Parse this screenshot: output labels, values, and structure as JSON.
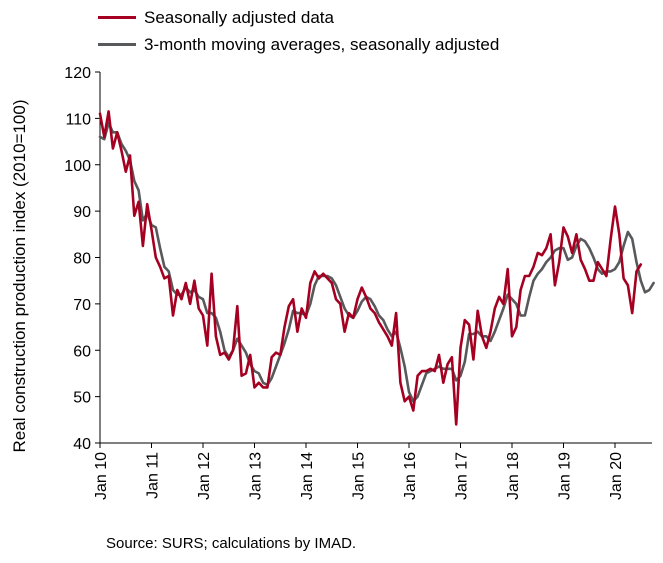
{
  "chart_data": {
    "type": "line",
    "title": "",
    "ylabel": "Real construction production index (2010=100)",
    "xlabel": "",
    "ylim": [
      40,
      120
    ],
    "yticks": [
      40,
      50,
      60,
      70,
      80,
      90,
      100,
      110,
      120
    ],
    "x_ticks": [
      "Jan 10",
      "Jan 11",
      "Jan 12",
      "Jan 13",
      "Jan 14",
      "Jan 15",
      "Jan 16",
      "Jan 17",
      "Jan 18",
      "Jan 19",
      "Jan 20"
    ],
    "x_start": "2010-01",
    "grid": false,
    "legend_position": "top-left",
    "series": [
      {
        "name": "Seasonally adjusted data",
        "color": "#a50021",
        "values": [
          111,
          106,
          111.5,
          103.5,
          107,
          103,
          98.5,
          102,
          89,
          92,
          82.5,
          91.5,
          86,
          80,
          78,
          75.5,
          76,
          67.5,
          73,
          71,
          74.5,
          70,
          75,
          69,
          67.5,
          61,
          76.5,
          63,
          59,
          59.5,
          58,
          60,
          69.5,
          54.5,
          55,
          59,
          52,
          53,
          52,
          52,
          58.5,
          59.5,
          59,
          65,
          69.5,
          71,
          64,
          69,
          67,
          74.5,
          77,
          75.5,
          76.5,
          75.5,
          74.5,
          71,
          70,
          64,
          68,
          67,
          71,
          73.5,
          71.5,
          69,
          68,
          66,
          64.5,
          63,
          61,
          68,
          53,
          49,
          50,
          47,
          54.5,
          55.5,
          55.5,
          56,
          55.5,
          59,
          53,
          57,
          58.5,
          44,
          60.5,
          66.5,
          65.5,
          58,
          68.5,
          63,
          60.5,
          64,
          69,
          71.5,
          70,
          77.5,
          63,
          65,
          73,
          76,
          76,
          78,
          81,
          80.5,
          82,
          85,
          74,
          79,
          86.5,
          84.5,
          81,
          85,
          79.5,
          77.5,
          75,
          75,
          79,
          77.5,
          76,
          84,
          91,
          85,
          75.5,
          74,
          68,
          77,
          78.5
        ]
      },
      {
        "name": "3-month moving averages, seasonally adjusted",
        "color": "#58595b",
        "values": [
          106,
          105.5,
          109,
          107,
          107,
          104.5,
          103,
          101,
          96.5,
          94.5,
          88,
          89.5,
          87,
          86.5,
          82,
          78,
          77,
          73,
          72,
          72,
          73.5,
          72.5,
          73,
          71.5,
          71,
          68,
          68,
          67,
          64,
          60,
          58.5,
          60,
          62.5,
          61,
          59.5,
          57,
          55.5,
          55,
          53,
          52.5,
          54,
          56.5,
          59,
          61.5,
          64.5,
          68.5,
          68,
          68,
          67.5,
          70,
          74,
          76,
          76,
          76,
          75.5,
          74,
          71.5,
          69,
          67.5,
          67,
          68.5,
          70.5,
          71.5,
          71,
          69.5,
          67.5,
          66.5,
          64.5,
          63,
          64,
          60.5,
          56.5,
          51,
          49,
          50,
          52.5,
          55,
          55.5,
          56,
          56.5,
          56,
          56,
          56,
          53.5,
          54.5,
          57.5,
          63.5,
          63.5,
          64,
          63,
          63,
          62,
          64,
          66.5,
          69,
          72,
          71,
          70,
          67.5,
          67.5,
          71.5,
          75,
          76.5,
          77.5,
          79,
          80,
          81.5,
          82,
          82,
          79.5,
          80,
          82.5,
          84,
          83.5,
          82,
          80,
          77.5,
          76.5,
          77,
          77,
          77.5,
          79,
          82.5,
          85.5,
          84,
          79,
          75,
          72.5,
          73,
          74.5
        ]
      }
    ]
  },
  "source_note": "Source: SURS; calculations by IMAD."
}
